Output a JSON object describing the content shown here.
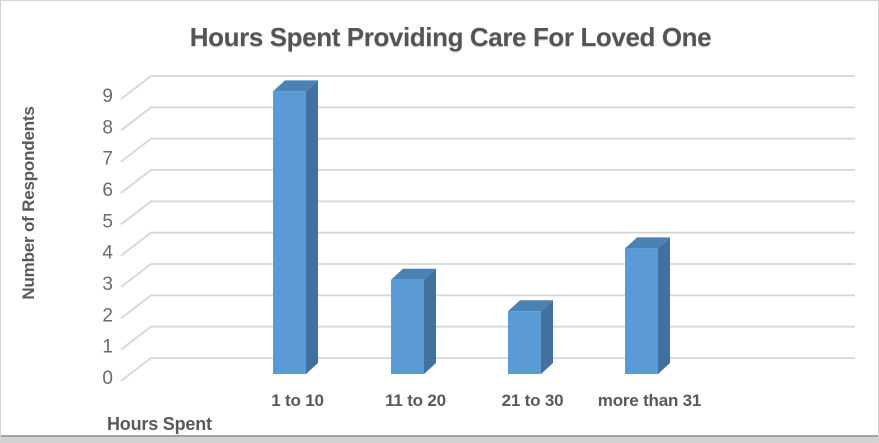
{
  "chart_data": {
    "type": "bar",
    "style": "3d-column",
    "title": "Hours Spent Providing Care For Loved One",
    "categories": [
      "1 to 10",
      "11 to 20",
      "21 to 30",
      "more than 31"
    ],
    "values": [
      9,
      3,
      2,
      4
    ],
    "xlabel": "Hours Spent",
    "ylabel": "Number of Respondents",
    "ylim": [
      0,
      9
    ],
    "yticks": [
      0,
      1,
      2,
      3,
      4,
      5,
      6,
      7,
      8,
      9
    ],
    "grid": true,
    "legend": "none",
    "colors": {
      "bar_front": "#5B9BD5",
      "bar_top": "#4A82B4",
      "bar_side": "#41719C",
      "gridline": "#d6d6d6",
      "tick_text": "#6b6b6b",
      "label_text": "#595959",
      "title_text": "#545454"
    }
  }
}
